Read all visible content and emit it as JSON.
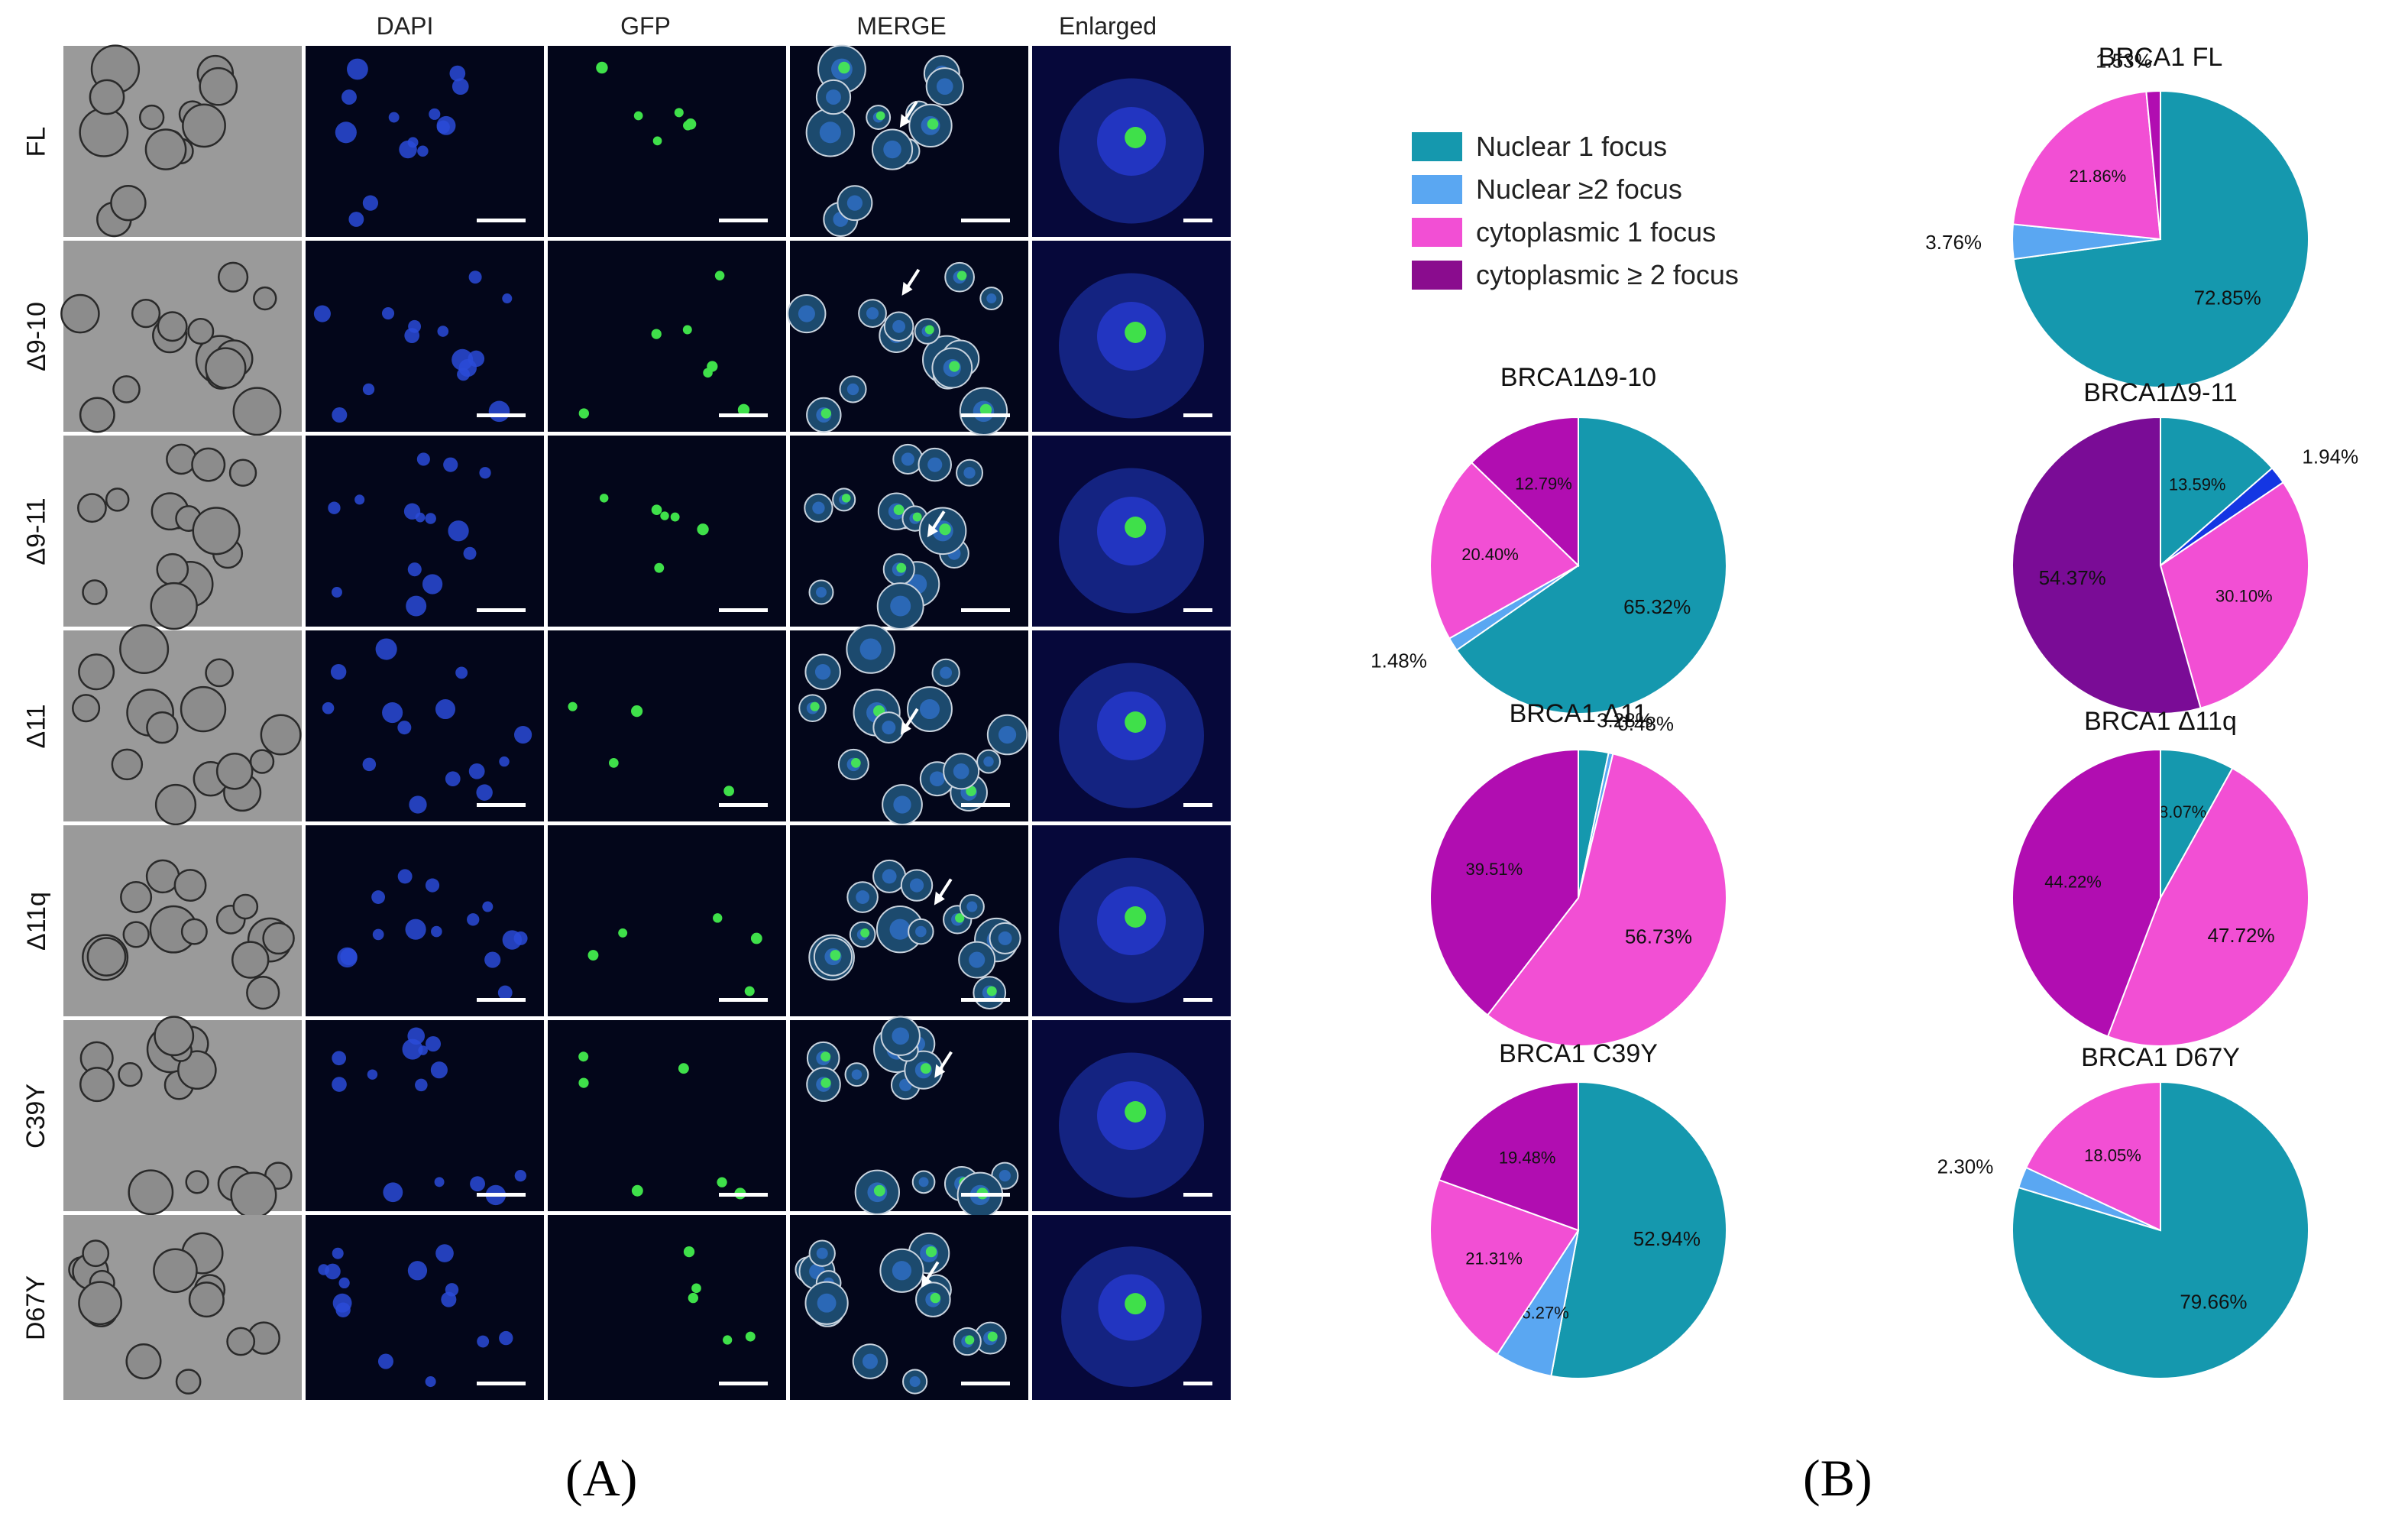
{
  "panel_a": {
    "label": "(A)",
    "column_headers": [
      "",
      "DAPI",
      "GFP",
      "MERGE",
      "Enlarged"
    ],
    "row_labels": [
      "FL",
      "Δ9-10",
      "Δ9-11",
      "Δ11",
      "Δ11q",
      "C39Y",
      "D67Y"
    ]
  },
  "panel_b": {
    "label": "(B)",
    "legend": [
      {
        "name": "Nuclear 1 focus",
        "color": "#1598AE"
      },
      {
        "name": "Nuclear ≥2 focus",
        "color": "#5AA7F2"
      },
      {
        "name": "cytoplasmic 1 focus",
        "color": "#F24FD4"
      },
      {
        "name": "cytoplasmic ≥ 2 focus",
        "color": "#8A0C8E"
      }
    ]
  },
  "chart_data": [
    {
      "type": "pie",
      "title": "BRCA1 FL",
      "slices": [
        {
          "category": "Nuclear 1 focus",
          "value": 72.85,
          "label": "72.85%",
          "color": "#1598AE"
        },
        {
          "category": "Nuclear ≥2 focus",
          "value": 3.76,
          "label": "3.76%",
          "color": "#5AA7F2"
        },
        {
          "category": "cytoplasmic 1 focus",
          "value": 21.86,
          "label": "21.86%",
          "color": "#F24FD4"
        },
        {
          "category": "cytoplasmic ≥ 2 focus",
          "value": 1.53,
          "label": "1.53%",
          "color": "#B10DB1"
        }
      ]
    },
    {
      "type": "pie",
      "title": "BRCA1Δ9-10",
      "slices": [
        {
          "category": "Nuclear 1 focus",
          "value": 65.32,
          "label": "65.32%",
          "color": "#1598AE"
        },
        {
          "category": "Nuclear ≥2 focus",
          "value": 1.48,
          "label": "1.48%",
          "color": "#5AA7F2"
        },
        {
          "category": "cytoplasmic 1 focus",
          "value": 20.4,
          "label": "20.40%",
          "color": "#F24FD4"
        },
        {
          "category": "cytoplasmic ≥ 2 focus",
          "value": 12.79,
          "label": "12.79%",
          "color": "#B10DB1"
        }
      ]
    },
    {
      "type": "pie",
      "title": "BRCA1Δ9-11",
      "slices": [
        {
          "category": "Nuclear 1 focus",
          "value": 13.59,
          "label": "13.59%",
          "color": "#1598AE"
        },
        {
          "category": "Nuclear ≥2 focus",
          "value": 1.94,
          "label": "1.94%",
          "color": "#1436E3"
        },
        {
          "category": "cytoplasmic 1 focus",
          "value": 30.1,
          "label": "30.10%",
          "color": "#F24FD4"
        },
        {
          "category": "cytoplasmic ≥ 2 focus",
          "value": 54.37,
          "label": "54.37%",
          "color": "#7A0C96"
        }
      ]
    },
    {
      "type": "pie",
      "title": "BRCA1 Δ11",
      "slices": [
        {
          "category": "Nuclear 1 focus",
          "value": 3.28,
          "label": "3.28%",
          "color": "#1598AE"
        },
        {
          "category": "Nuclear ≥2 focus",
          "value": 0.48,
          "label": "0.48%",
          "color": "#5AA7F2"
        },
        {
          "category": "cytoplasmic 1 focus",
          "value": 56.73,
          "label": "56.73%",
          "color": "#F24FD4"
        },
        {
          "category": "cytoplasmic ≥ 2 focus",
          "value": 39.51,
          "label": "39.51%",
          "color": "#B10DB1"
        }
      ]
    },
    {
      "type": "pie",
      "title": "BRCA1 Δ11q",
      "slices": [
        {
          "category": "Nuclear 1 focus",
          "value": 8.07,
          "label": "8.07%",
          "color": "#1598AE"
        },
        {
          "category": "cytoplasmic 1 focus",
          "value": 47.72,
          "label": "47.72%",
          "color": "#F24FD4"
        },
        {
          "category": "cytoplasmic ≥ 2 focus",
          "value": 44.22,
          "label": "44.22%",
          "color": "#B10DB1"
        }
      ]
    },
    {
      "type": "pie",
      "title": "BRCA1 C39Y",
      "slices": [
        {
          "category": "Nuclear 1 focus",
          "value": 52.94,
          "label": "52.94%",
          "color": "#1598AE"
        },
        {
          "category": "Nuclear ≥2 focus",
          "value": 6.27,
          "label": "6.27%",
          "color": "#5AA7F2"
        },
        {
          "category": "cytoplasmic 1 focus",
          "value": 21.31,
          "label": "21.31%",
          "color": "#F24FD4"
        },
        {
          "category": "cytoplasmic ≥ 2 focus",
          "value": 19.48,
          "label": "19.48%",
          "color": "#B10DB1"
        }
      ]
    },
    {
      "type": "pie",
      "title": "BRCA1 D67Y",
      "slices": [
        {
          "category": "Nuclear 1 focus",
          "value": 79.66,
          "label": "79.66%",
          "color": "#1598AE"
        },
        {
          "category": "Nuclear ≥2 focus",
          "value": 2.3,
          "label": "2.30%",
          "color": "#5AA7F2"
        },
        {
          "category": "cytoplasmic 1 focus",
          "value": 18.05,
          "label": "18.05%",
          "color": "#F24FD4"
        }
      ]
    }
  ]
}
